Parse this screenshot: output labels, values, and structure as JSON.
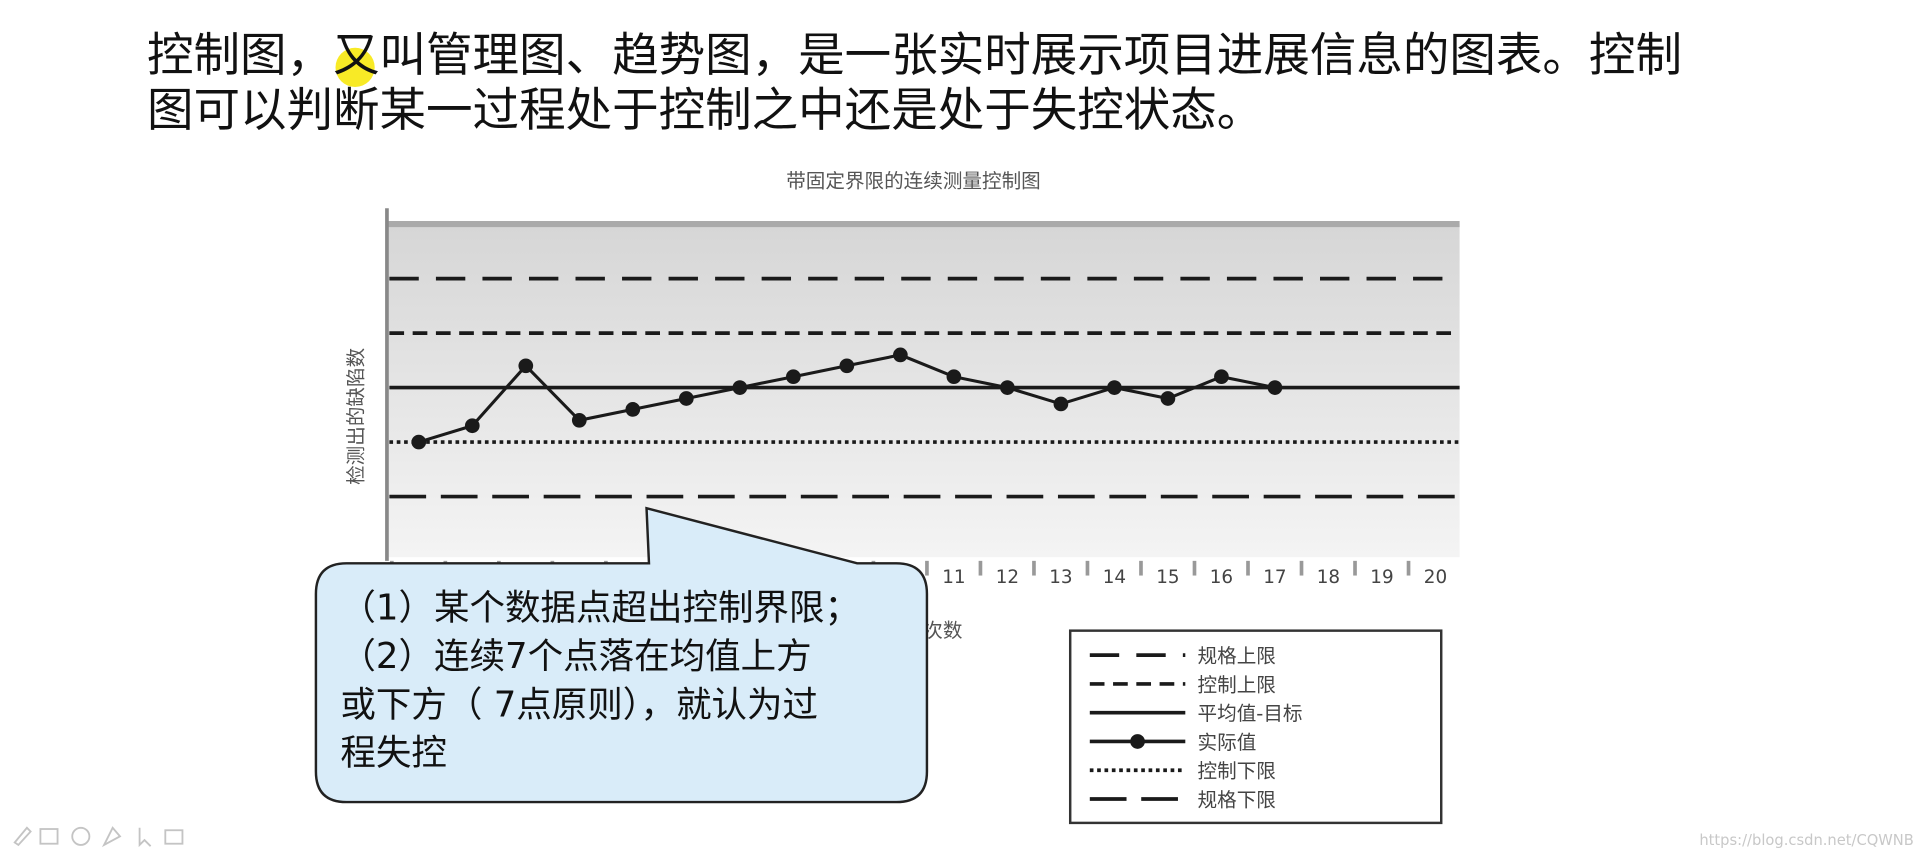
{
  "heading_lines": [
    "控制图，又叫管理图、趋势图，是一张实时展示项目进展信息的图表。控制",
    "图可以判断某一过程处于控制之中还是处于失控状态。"
  ],
  "chart_data": {
    "type": "line",
    "title": "带固定界限的连续测量控制图",
    "y_label": "检测出的缺陷数",
    "x_label": "次数",
    "categories": [
      null,
      null,
      null,
      null,
      null,
      null,
      null,
      null,
      null,
      null,
      "11",
      "12",
      "13",
      "14",
      "15",
      "16",
      "17",
      "18",
      "19",
      "20"
    ],
    "series": [
      {
        "name": "实际值",
        "color": "#1a1a1a",
        "values": [
          2.0,
          2.3,
          3.4,
          2.4,
          2.6,
          2.8,
          3.0,
          3.2,
          3.4,
          3.6,
          3.2,
          3.0,
          2.7,
          3.0,
          2.8,
          3.2,
          3.0,
          null,
          null,
          null
        ]
      }
    ],
    "reference_lines": [
      {
        "name": "规格上限",
        "value": 5,
        "style": "long-dash"
      },
      {
        "name": "控制上限",
        "value": 4,
        "style": "short-dash"
      },
      {
        "name": "平均值-目标",
        "value": 3,
        "style": "solid"
      },
      {
        "name": "控制下限",
        "value": 2,
        "style": "dotted"
      },
      {
        "name": "规格下限",
        "value": 1,
        "style": "long-dash-wide"
      }
    ],
    "ylim": [
      0,
      6
    ],
    "legend": "bottom-right"
  },
  "callout_lines": [
    "（1）某个数据点超出控制界限；",
    "（2）连续7个点落在均值上方",
    "或下方（ 7点原则），就认为过",
    "程失控"
  ],
  "watermark": "https://blog.csdn.net/CQWNB"
}
